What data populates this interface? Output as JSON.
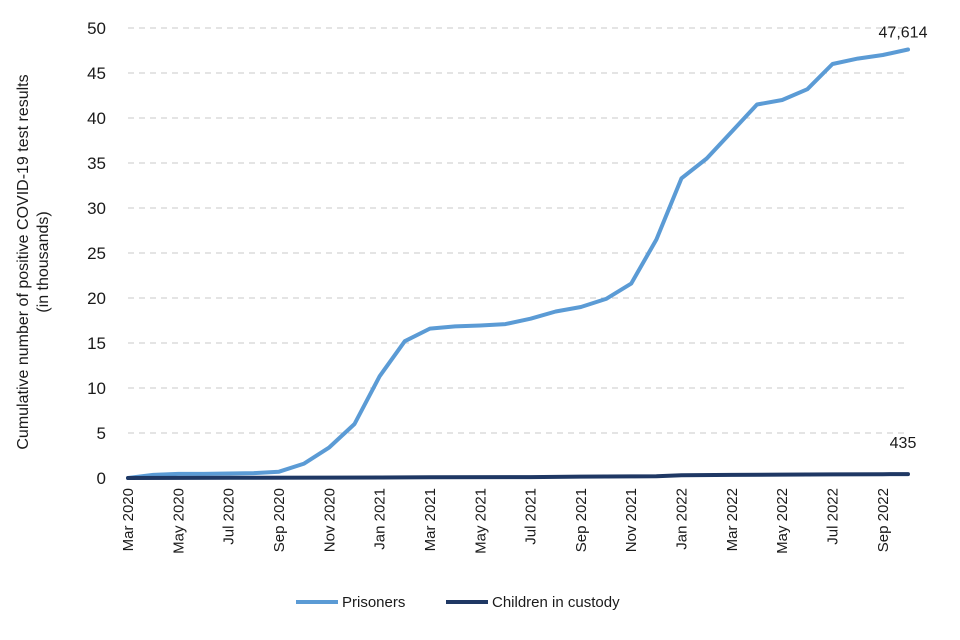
{
  "chart_data": {
    "type": "line",
    "title": "",
    "ylabel": [
      "Cumulative number of positive COVID-19 test results",
      "(in thousands)"
    ],
    "xlabel": "",
    "ylim": [
      0,
      50
    ],
    "yticks": [
      0,
      5,
      10,
      15,
      20,
      25,
      30,
      35,
      40,
      45,
      50
    ],
    "x_start": "Mar 2020",
    "x_end": "Oct 2022",
    "x_tick_labels": [
      "Mar 2020",
      "May 2020",
      "Jul 2020",
      "Sep 2020",
      "Nov 2020",
      "Jan 2021",
      "Mar 2021",
      "May 2021",
      "Jul 2021",
      "Sep 2021",
      "Nov 2021",
      "Jan 2022",
      "Mar 2022",
      "May 2022",
      "Jul 2022",
      "Sep 2022"
    ],
    "grid": "horizontal dashed",
    "legend_position": "bottom",
    "series": [
      {
        "name": "Prisoners",
        "color": "#5b9bd5",
        "end_label": "47,614",
        "points": [
          [
            "Mar 2020",
            0.0
          ],
          [
            "Apr 2020",
            0.35
          ],
          [
            "May 2020",
            0.45
          ],
          [
            "Jun 2020",
            0.45
          ],
          [
            "Jul 2020",
            0.5
          ],
          [
            "Aug 2020",
            0.55
          ],
          [
            "Sep 2020",
            0.7
          ],
          [
            "Oct 2020",
            1.6
          ],
          [
            "Nov 2020",
            3.4
          ],
          [
            "Dec 2020",
            6.0
          ],
          [
            "Jan 2021",
            11.3
          ],
          [
            "Feb 2021",
            15.2
          ],
          [
            "Mar 2021",
            16.6
          ],
          [
            "Apr 2021",
            16.85
          ],
          [
            "May 2021",
            16.95
          ],
          [
            "Jun 2021",
            17.1
          ],
          [
            "Jul 2021",
            17.7
          ],
          [
            "Aug 2021",
            18.5
          ],
          [
            "Sep 2021",
            19.0
          ],
          [
            "Oct 2021",
            19.9
          ],
          [
            "Nov 2021",
            21.6
          ],
          [
            "Dec 2021",
            26.5
          ],
          [
            "Jan 2022",
            33.3
          ],
          [
            "Feb 2022",
            35.5
          ],
          [
            "Mar 2022",
            38.5
          ],
          [
            "Apr 2022",
            41.5
          ],
          [
            "May 2022",
            42.0
          ],
          [
            "Jun 2022",
            43.2
          ],
          [
            "Jul 2022",
            46.0
          ],
          [
            "Aug 2022",
            46.6
          ],
          [
            "Sep 2022",
            47.0
          ],
          [
            "Oct 2022",
            47.614
          ]
        ]
      },
      {
        "name": "Children in custody",
        "color": "#1f3864",
        "end_label": "435",
        "points": [
          [
            "Mar 2020",
            0.0
          ],
          [
            "Jul 2020",
            0.02
          ],
          [
            "Nov 2020",
            0.05
          ],
          [
            "Mar 2021",
            0.08
          ],
          [
            "Jul 2021",
            0.1
          ],
          [
            "Sep 2021",
            0.15
          ],
          [
            "Nov 2021",
            0.18
          ],
          [
            "Dec 2021",
            0.2
          ],
          [
            "Jan 2022",
            0.3
          ],
          [
            "Mar 2022",
            0.35
          ],
          [
            "May 2022",
            0.38
          ],
          [
            "Jul 2022",
            0.4
          ],
          [
            "Sep 2022",
            0.42
          ],
          [
            "Oct 2022",
            0.435
          ]
        ]
      }
    ]
  }
}
